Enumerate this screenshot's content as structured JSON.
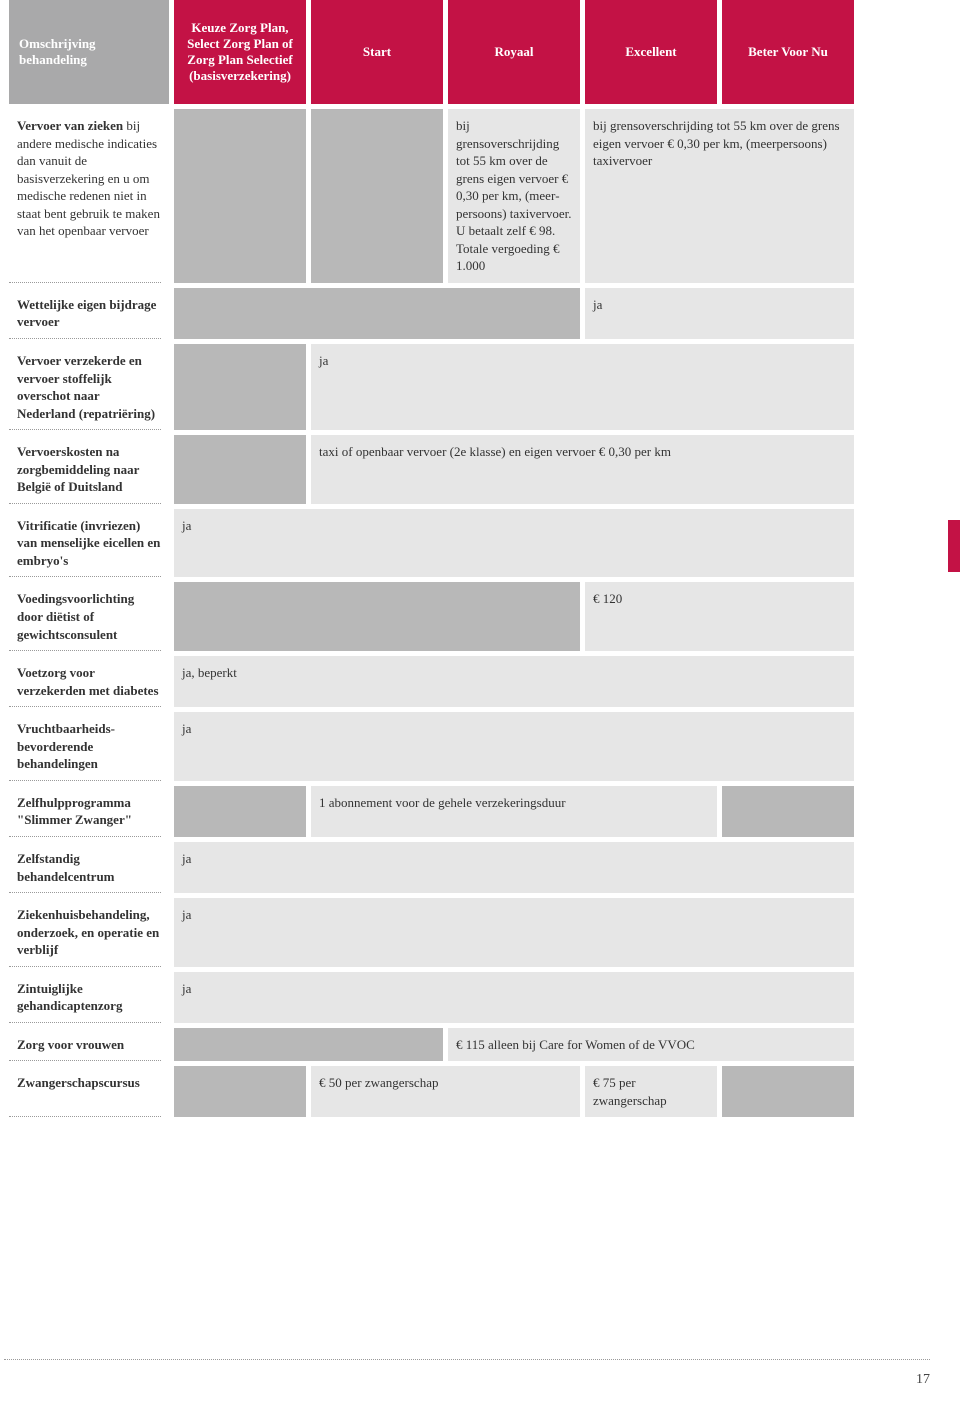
{
  "colors": {
    "header_bg": "#c31245",
    "header_first_bg": "#a9a9aa",
    "header_text": "#ffffff",
    "cell_light": "#e6e6e6",
    "cell_grey": "#b8b8b8",
    "text": "#333333",
    "dotted": "#9a9a9a",
    "page_bg": "#ffffff"
  },
  "columns": {
    "desc": "Omschrijving behandeling",
    "c1": "Keuze Zorg Plan, Select Zorg Plan of Zorg Plan Selectief (basisverzekering)",
    "c2": "Start",
    "c3": "Royaal",
    "c4": "Excellent",
    "c5": "Beter Voor Nu"
  },
  "rows": {
    "r1": {
      "desc_bold": "Vervoer van zieken",
      "desc_rest": " bij andere medische indicaties dan vanuit de basisverzekering en u om medische redenen niet in staat bent gebruik te maken van het openbaar vervoer",
      "c3": "bij grensoverschrijding tot 55 km over de grens eigen vervoer € 0,30 per km, (meer­persoons) taxivervoer. U betaalt zelf € 98. Totale vergoeding € 1.000",
      "c45": "bij grensoverschrijding tot 55 km over de grens eigen vervoer € 0,30 per km, (meerpersoons) taxivervoer"
    },
    "r2": {
      "desc": "Wettelijke eigen bijdrage vervoer",
      "c45": "ja"
    },
    "r3": {
      "desc": "Vervoer verzekerde en vervoer stoffelijk overschot naar Nederland (repatriëring)",
      "c2345": "ja"
    },
    "r4": {
      "desc": "Vervoerskosten na zorgbemiddeling naar België of Duitsland",
      "c2345": "taxi of openbaar vervoer (2e klasse) en eigen vervoer € 0,30 per km"
    },
    "r5": {
      "desc": "Vitrificatie (invriezen) van menselijke eicellen en embryo's",
      "c12345": "ja"
    },
    "r6": {
      "desc": "Voedingsvoorlichting door diëtist of gewichtsconsulent",
      "c45": "€ 120"
    },
    "r7": {
      "desc": "Voetzorg voor verzekerden met diabetes",
      "c12345": "ja, beperkt"
    },
    "r8": {
      "desc": "Vruchtbaarheids­bevorderende behandelingen",
      "c12345": "ja"
    },
    "r9": {
      "desc": "Zelfhulpprogramma \"Slimmer Zwanger\"",
      "c234": "1 abonnement voor de gehele verzekeringsduur"
    },
    "r10": {
      "desc": "Zelfstandig behandelcentrum",
      "c12345": "ja"
    },
    "r11": {
      "desc": "Ziekenhuisbehandeling, onderzoek, en operatie en verblijf",
      "c12345": "ja"
    },
    "r12": {
      "desc": "Zintuiglijke gehandicaptenzorg",
      "c12345": "ja"
    },
    "r13": {
      "desc": "Zorg voor vrouwen",
      "c345": "€ 115 alleen bij Care for Women of de VVOC"
    },
    "r14": {
      "desc": "Zwangerschapscursus",
      "c23": "€ 50 per zwangerschap",
      "c4": "€ 75 per zwangerschap"
    }
  },
  "page_number": "17"
}
